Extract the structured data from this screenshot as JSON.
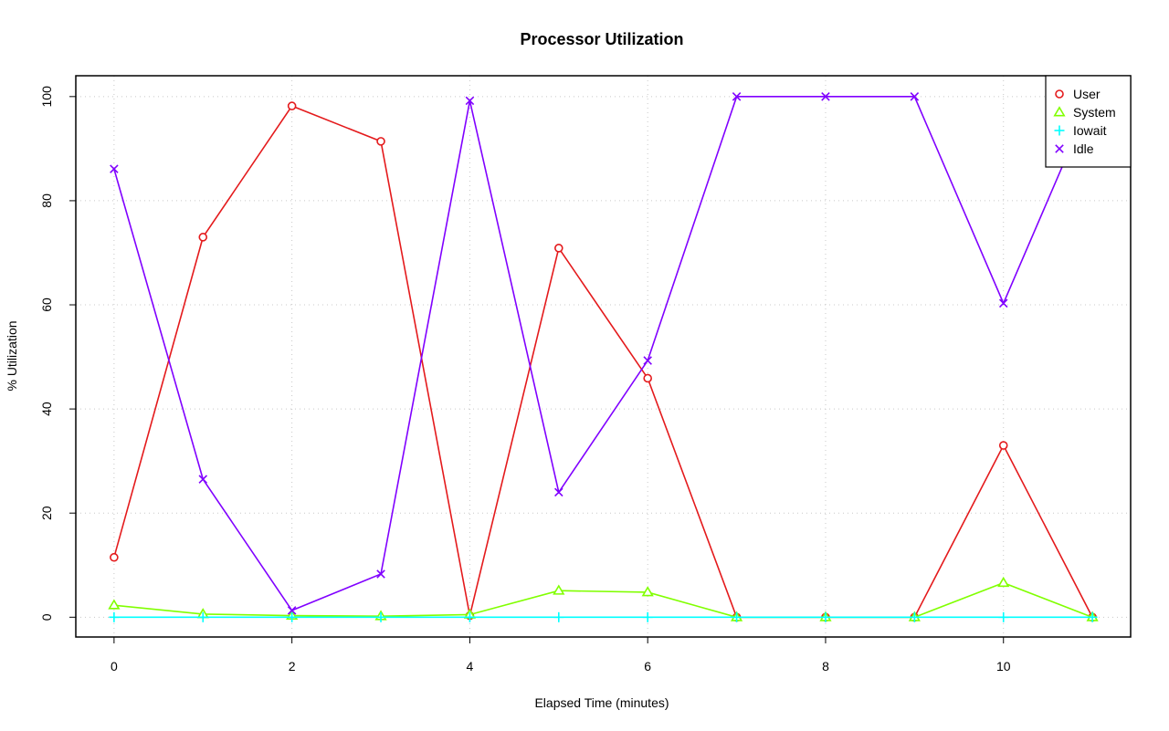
{
  "chart_data": {
    "type": "line",
    "title": "Processor Utilization",
    "xlabel": "Elapsed Time (minutes)",
    "ylabel": "% Utilization",
    "x": [
      0,
      1,
      2,
      3,
      4,
      5,
      6,
      7,
      8,
      9,
      10,
      11
    ],
    "xlim": [
      -0.43,
      11.43
    ],
    "ylim": [
      -3.8,
      104
    ],
    "xticks": [
      0,
      2,
      4,
      6,
      8,
      10
    ],
    "yticks": [
      0,
      20,
      40,
      60,
      80,
      100
    ],
    "grid": true,
    "legend_position": "top-right",
    "series": [
      {
        "name": "User",
        "color": "#e41a1c",
        "marker": "circle",
        "values": [
          11.5,
          73,
          98.2,
          91.4,
          0.3,
          70.9,
          45.9,
          0,
          0,
          0,
          33,
          0
        ]
      },
      {
        "name": "System",
        "color": "#80ff00",
        "marker": "triangle",
        "values": [
          2.3,
          0.6,
          0.3,
          0.2,
          0.5,
          5.1,
          4.8,
          0,
          0,
          0,
          6.6,
          0
        ]
      },
      {
        "name": "Iowait",
        "color": "#00ffff",
        "marker": "plus",
        "values": [
          0,
          0,
          0,
          0,
          0,
          0,
          0,
          0,
          0,
          0,
          0,
          0
        ]
      },
      {
        "name": "Idle",
        "color": "#8000ff",
        "marker": "cross",
        "values": [
          86.1,
          26.5,
          1.3,
          8.3,
          99.2,
          24,
          49.3,
          100,
          100,
          100,
          60.3,
          100
        ]
      }
    ]
  }
}
